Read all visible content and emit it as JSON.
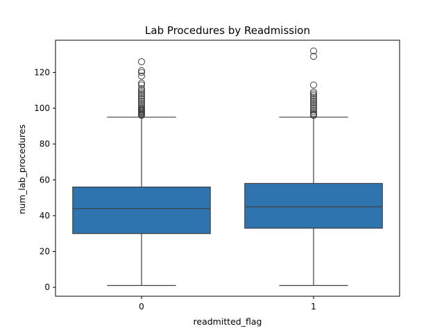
{
  "chart_data": {
    "type": "box",
    "title": "Lab Procedures by Readmission",
    "xlabel": "readmitted_flag",
    "ylabel": "num_lab_procedures",
    "ylim": [
      -5,
      138
    ],
    "yticks": [
      0,
      20,
      40,
      60,
      80,
      100,
      120
    ],
    "grid": false,
    "box_color": "#2e75b0",
    "line_color": "#3f3f3f",
    "categories": [
      "0",
      "1"
    ],
    "boxes": [
      {
        "category": "0",
        "whisker_low": 1,
        "q1": 30,
        "median": 44,
        "q3": 56,
        "whisker_high": 95,
        "outliers": [
          96,
          96.5,
          97,
          97.5,
          98,
          98.5,
          99,
          99.5,
          100,
          101,
          102,
          103,
          104,
          105,
          106,
          107,
          108,
          109,
          110,
          111,
          113,
          114,
          118,
          120,
          121,
          126
        ]
      },
      {
        "category": "1",
        "whisker_low": 1,
        "q1": 33,
        "median": 45,
        "q3": 58,
        "whisker_high": 95,
        "outliers": [
          96,
          96.5,
          97,
          98,
          99,
          100,
          101,
          102,
          103,
          104,
          105,
          106,
          107,
          108,
          109,
          113,
          129,
          132
        ]
      }
    ]
  }
}
